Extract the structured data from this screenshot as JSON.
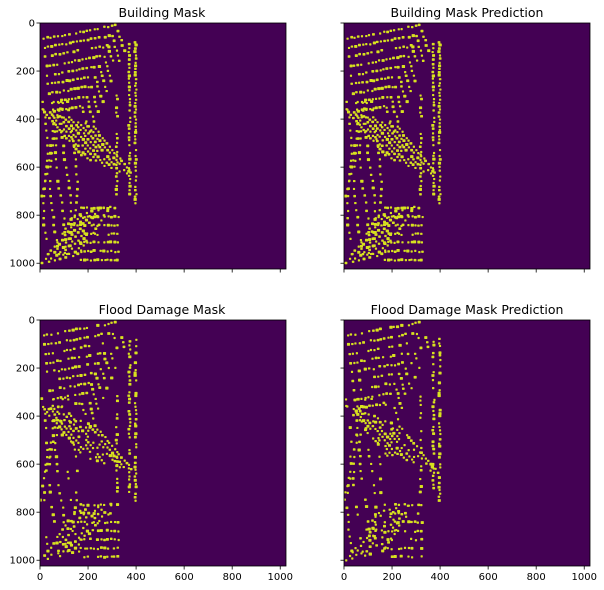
{
  "chart_data": [
    {
      "type": "heatmap",
      "title": "Building Mask",
      "xlim": [
        0,
        1024
      ],
      "ylim": [
        1024,
        0
      ],
      "xticks": [
        0,
        200,
        400,
        600,
        800,
        1000
      ],
      "yticks": [
        0,
        200,
        400,
        600,
        800,
        1000
      ],
      "show_xtick_labels": false,
      "show_ytick_labels": true,
      "background_color": "#440154",
      "mask_color": "#d8e21f",
      "mask_extent_x": [
        0,
        410
      ],
      "mask_extent_y": [
        0,
        1024
      ]
    },
    {
      "type": "heatmap",
      "title": "Building Mask Prediction",
      "xlim": [
        0,
        1024
      ],
      "ylim": [
        1024,
        0
      ],
      "xticks": [
        0,
        200,
        400,
        600,
        800,
        1000
      ],
      "yticks": [
        0,
        200,
        400,
        600,
        800,
        1000
      ],
      "show_xtick_labels": false,
      "show_ytick_labels": false,
      "background_color": "#440154",
      "mask_color": "#d8e21f",
      "mask_extent_x": [
        0,
        410
      ],
      "mask_extent_y": [
        0,
        1024
      ]
    },
    {
      "type": "heatmap",
      "title": "Flood Damage Mask",
      "xlim": [
        0,
        1024
      ],
      "ylim": [
        1024,
        0
      ],
      "xticks": [
        0,
        200,
        400,
        600,
        800,
        1000
      ],
      "yticks": [
        0,
        200,
        400,
        600,
        800,
        1000
      ],
      "show_xtick_labels": true,
      "show_ytick_labels": true,
      "background_color": "#440154",
      "mask_color": "#d8e21f",
      "mask_extent_x": [
        0,
        410
      ],
      "mask_extent_y": [
        0,
        1024
      ]
    },
    {
      "type": "heatmap",
      "title": "Flood Damage Mask Prediction",
      "xlim": [
        0,
        1024
      ],
      "ylim": [
        1024,
        0
      ],
      "xticks": [
        0,
        200,
        400,
        600,
        800,
        1000
      ],
      "yticks": [
        0,
        200,
        400,
        600,
        800,
        1000
      ],
      "show_xtick_labels": true,
      "show_ytick_labels": false,
      "background_color": "#440154",
      "mask_color": "#d8e21f",
      "mask_extent_x": [
        0,
        410
      ],
      "mask_extent_y": [
        0,
        1024
      ]
    }
  ]
}
